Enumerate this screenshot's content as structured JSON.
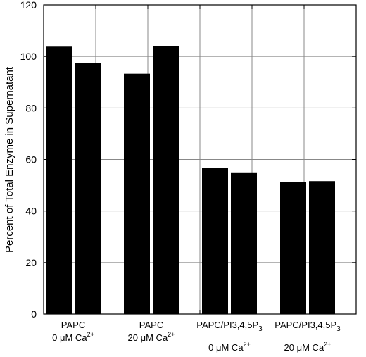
{
  "chart_data": {
    "type": "bar",
    "title": "",
    "xlabel": "",
    "ylabel": "Percent of Total Enzyme in Supernatant",
    "ylim": [
      0,
      120
    ],
    "yticks": [
      0,
      20,
      40,
      60,
      80,
      100,
      120
    ],
    "grid": true,
    "legend": "none",
    "categories": [
      {
        "name": "PAPC",
        "subscript": "",
        "condition": "0 μM Ca",
        "superscript": "2+"
      },
      {
        "name": "PAPC",
        "subscript": "",
        "condition": "20 μM Ca",
        "superscript": "2+"
      },
      {
        "name": "PAPC/PI3,4,5P",
        "subscript": "3",
        "condition": "0 μM Ca",
        "superscript": "2+"
      },
      {
        "name": "PAPC/PI3,4,5P",
        "subscript": "3",
        "condition": "20 μM Ca",
        "superscript": "2+"
      }
    ],
    "series": [
      {
        "values": [
          103.8,
          93.3,
          56.6,
          51.3
        ]
      },
      {
        "values": [
          97.4,
          104.1,
          55.0,
          51.6
        ]
      }
    ],
    "bar_color": "#000000",
    "grid_color": "#888888"
  }
}
